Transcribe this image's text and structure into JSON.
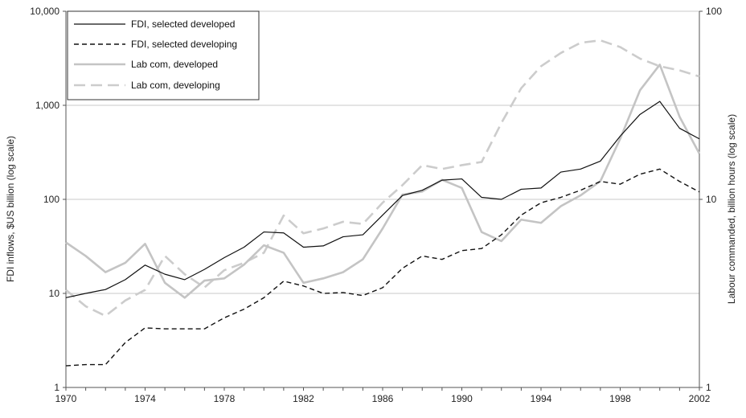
{
  "chart_data": {
    "type": "line",
    "x": [
      1970,
      1971,
      1972,
      1973,
      1974,
      1975,
      1976,
      1977,
      1978,
      1979,
      1980,
      1981,
      1982,
      1983,
      1984,
      1985,
      1986,
      1987,
      1988,
      1989,
      1990,
      1991,
      1992,
      1993,
      1994,
      1995,
      1996,
      1997,
      1998,
      1999,
      2000,
      2001,
      2002
    ],
    "x_tick_labels": [
      "1970",
      "1974",
      "1978",
      "1982",
      "1986",
      "1990",
      "1994",
      "1998",
      "2002"
    ],
    "xlim": [
      1970,
      2002
    ],
    "left_axis": {
      "label": "FDI inflows, $US billion (log scale)",
      "scale": "log",
      "ylim": [
        1,
        10000
      ],
      "tick_labels": [
        "1",
        "10",
        "100",
        "1,000",
        "10,000"
      ]
    },
    "right_axis": {
      "label": "Labour commanded, billion hours (log scale)",
      "scale": "log",
      "ylim": [
        1,
        100
      ],
      "tick_labels": [
        "1",
        "10",
        "100"
      ]
    },
    "grid": true,
    "legend_position": "top-left",
    "series": [
      {
        "name": "FDI, selected developed",
        "axis": "left",
        "color": "#111111",
        "dash": "solid",
        "values": [
          9,
          10,
          11,
          14,
          20,
          16,
          14,
          18,
          24,
          31,
          45,
          44,
          31,
          32,
          40,
          42,
          68,
          110,
          125,
          160,
          165,
          105,
          100,
          128,
          132,
          195,
          210,
          255,
          470,
          800,
          1100,
          570,
          440
        ]
      },
      {
        "name": "FDI, selected developing",
        "axis": "left",
        "color": "#111111",
        "dash": "dashed",
        "values": [
          1.7,
          1.75,
          1.75,
          3.0,
          4.3,
          4.2,
          4.2,
          4.2,
          5.5,
          6.8,
          9.0,
          13.5,
          12.0,
          10.0,
          10.2,
          9.5,
          11.5,
          18.5,
          25.0,
          23.0,
          28.5,
          30.0,
          42.0,
          68.0,
          92.0,
          105.0,
          125.0,
          155.0,
          145.0,
          185.0,
          210.0,
          155.0,
          120.0
        ]
      },
      {
        "name": "Lab com, developed",
        "axis": "right",
        "color": "#c4c4c4",
        "dash": "solid",
        "values": [
          5.9,
          5.0,
          4.1,
          4.6,
          5.8,
          3.6,
          3.0,
          3.7,
          3.8,
          4.5,
          5.7,
          5.2,
          3.6,
          3.8,
          4.1,
          4.8,
          7.0,
          10.6,
          11.0,
          12.7,
          11.5,
          6.7,
          6.0,
          7.8,
          7.5,
          9.2,
          10.5,
          12.5,
          21.0,
          38.0,
          52.0,
          27.5,
          17.5
        ]
      },
      {
        "name": "Lab com, developing",
        "axis": "right",
        "color": "#cccccc",
        "dash": "longdash",
        "values": [
          3.3,
          2.7,
          2.4,
          2.9,
          3.3,
          5.0,
          4.0,
          3.4,
          4.2,
          4.6,
          5.2,
          8.2,
          6.6,
          7.0,
          7.6,
          7.4,
          9.6,
          11.9,
          15.2,
          14.5,
          15.2,
          15.8,
          25.5,
          39.0,
          51.0,
          60.0,
          68.0,
          70.0,
          64.5,
          56.0,
          51.0,
          48.5,
          45.0
        ]
      }
    ]
  }
}
